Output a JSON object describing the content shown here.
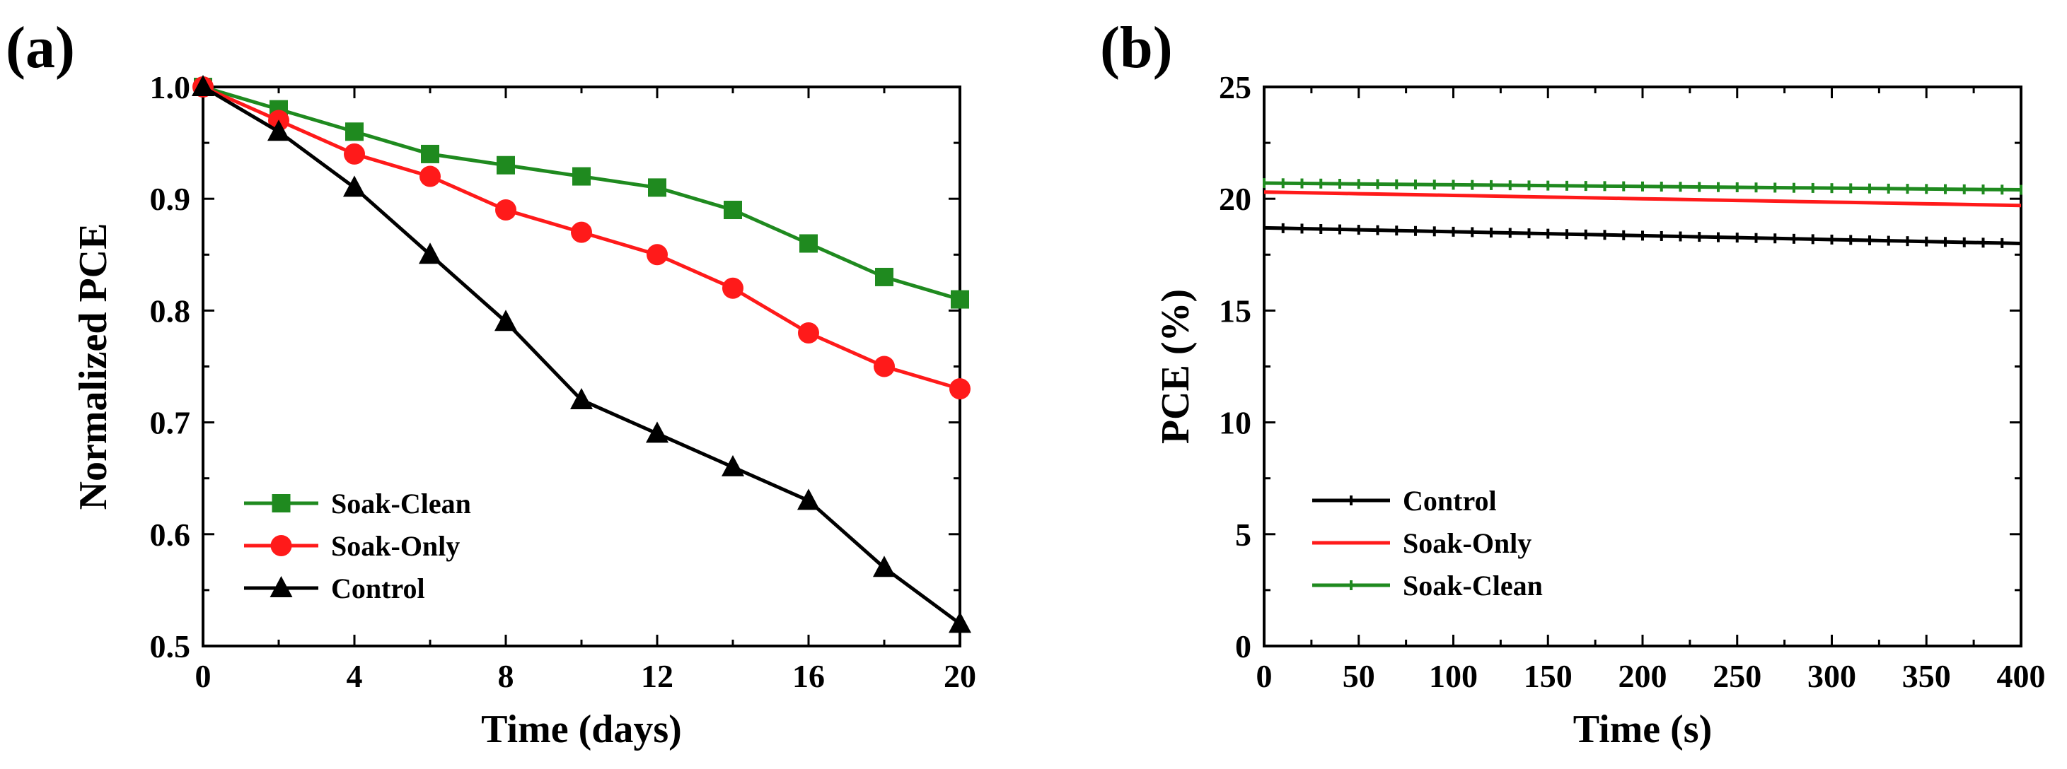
{
  "chart_data": [
    {
      "panel_label": "(a)",
      "type": "line",
      "xlabel": "Time (days)",
      "ylabel": "Normalized PCE",
      "xlim": [
        0,
        20
      ],
      "ylim": [
        0.5,
        1.0
      ],
      "xticks": [
        0,
        4,
        8,
        12,
        16,
        20
      ],
      "xtick_labels": [
        "0",
        "4",
        "8",
        "12",
        "16",
        "20"
      ],
      "yticks": [
        0.5,
        0.6,
        0.7,
        0.8,
        0.9,
        1.0
      ],
      "ytick_labels": [
        "0.5",
        "0.6",
        "0.7",
        "0.8",
        "0.9",
        "1.0"
      ],
      "x": [
        0,
        2,
        4,
        6,
        8,
        10,
        12,
        14,
        16,
        18,
        20
      ],
      "legend_position": "lower-left",
      "series": [
        {
          "name": "Soak-Clean",
          "color": "#1f8a1f",
          "marker": "square",
          "values": [
            1.0,
            0.98,
            0.96,
            0.94,
            0.93,
            0.92,
            0.91,
            0.89,
            0.86,
            0.83,
            0.81
          ]
        },
        {
          "name": "Soak-Only",
          "color": "#ff1a1a",
          "marker": "circle",
          "values": [
            1.0,
            0.97,
            0.94,
            0.92,
            0.89,
            0.87,
            0.85,
            0.82,
            0.78,
            0.75,
            0.73
          ]
        },
        {
          "name": "Control",
          "color": "#000000",
          "marker": "triangle",
          "values": [
            1.0,
            0.96,
            0.91,
            0.85,
            0.79,
            0.72,
            0.69,
            0.66,
            0.63,
            0.57,
            0.52
          ]
        }
      ]
    },
    {
      "panel_label": "(b)",
      "type": "line",
      "xlabel": "Time (s)",
      "ylabel": "PCE (%)",
      "xlim": [
        0,
        400
      ],
      "ylim": [
        0,
        25
      ],
      "xticks": [
        0,
        50,
        100,
        150,
        200,
        250,
        300,
        350,
        400
      ],
      "xtick_labels": [
        "0",
        "50",
        "100",
        "150",
        "200",
        "250",
        "300",
        "350",
        "400"
      ],
      "yticks": [
        0,
        5,
        10,
        15,
        20,
        25
      ],
      "ytick_labels": [
        "0",
        "5",
        "10",
        "15",
        "20",
        "25"
      ],
      "x": [
        0,
        400
      ],
      "legend_position": "lower-left",
      "series": [
        {
          "name": "Control",
          "color": "#000000",
          "marker": "small-tick",
          "values": [
            18.7,
            18.0
          ]
        },
        {
          "name": "Soak-Only",
          "color": "#ff1a1a",
          "marker": "none",
          "values": [
            20.3,
            19.7
          ]
        },
        {
          "name": "Soak-Clean",
          "color": "#1f8a1f",
          "marker": "small-tick",
          "values": [
            20.7,
            20.4
          ]
        }
      ]
    }
  ]
}
